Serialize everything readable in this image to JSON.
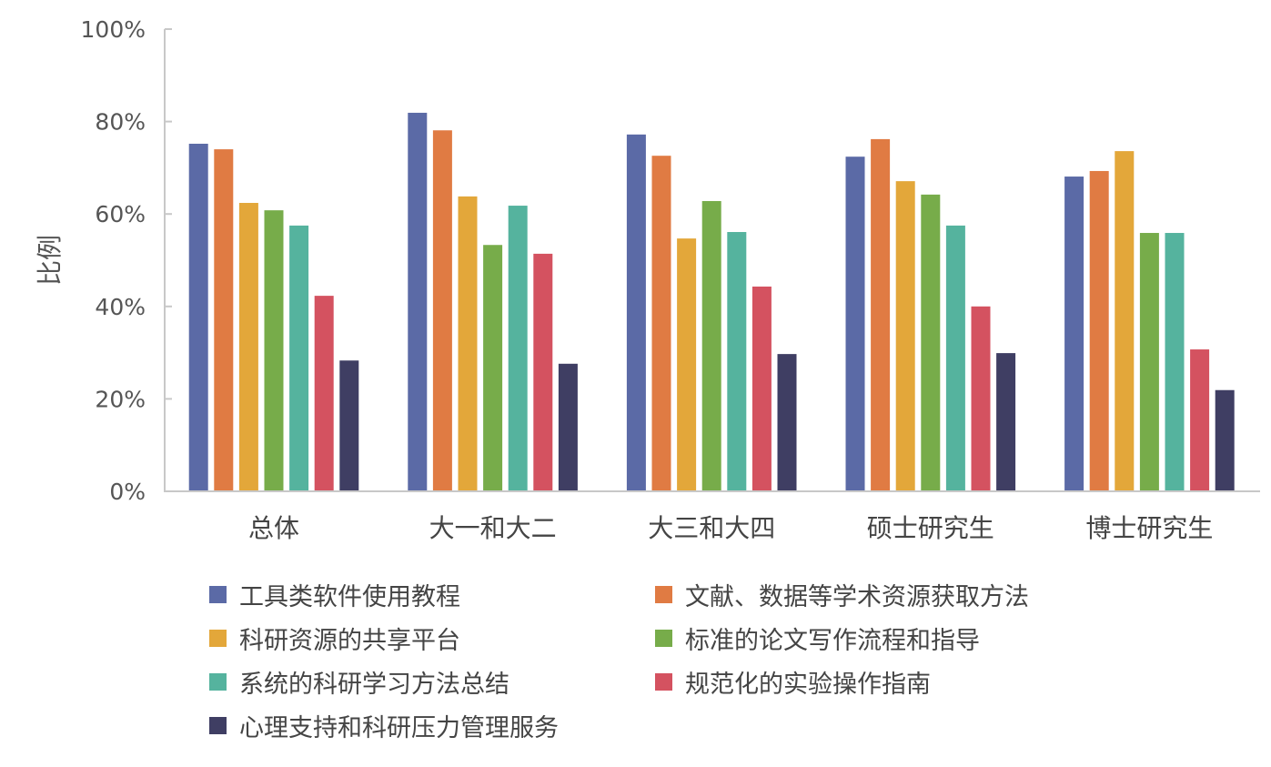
{
  "chart_data": {
    "type": "bar",
    "title": "",
    "xlabel": "",
    "ylabel": "比例",
    "ylim": [
      0,
      100
    ],
    "yticks": [
      "0%",
      "20%",
      "40%",
      "60%",
      "80%",
      "100%"
    ],
    "grid": false,
    "legend_position": "bottom",
    "categories": [
      "总体",
      "大一和大二",
      "大三和大四",
      "硕士研究生",
      "博士研究生"
    ],
    "series": [
      {
        "name": "工具类软件使用教程",
        "color": "#5b6aa6",
        "values": [
          75.2,
          81.9,
          77.2,
          72.4,
          68.1
        ]
      },
      {
        "name": "文献、数据等学术资源获取方法",
        "color": "#e07b43",
        "values": [
          74.0,
          78.1,
          72.6,
          76.2,
          69.3
        ]
      },
      {
        "name": "科研资源的共享平台",
        "color": "#e3a73a",
        "values": [
          62.4,
          63.8,
          54.7,
          67.1,
          73.6
        ]
      },
      {
        "name": "标准的论文写作流程和指导",
        "color": "#77ac4a",
        "values": [
          60.8,
          53.3,
          62.8,
          64.2,
          55.9
        ]
      },
      {
        "name": "系统的科研学习方法总结",
        "color": "#55b39e",
        "values": [
          57.5,
          61.8,
          56.1,
          57.5,
          55.9
        ]
      },
      {
        "name": "规范化的实验操作指南",
        "color": "#d45260",
        "values": [
          42.3,
          51.4,
          44.3,
          40.0,
          30.7
        ]
      },
      {
        "name": "心理支持和科研压力管理服务",
        "color": "#3f3e63",
        "values": [
          28.3,
          27.6,
          29.7,
          29.9,
          21.9
        ]
      }
    ]
  }
}
